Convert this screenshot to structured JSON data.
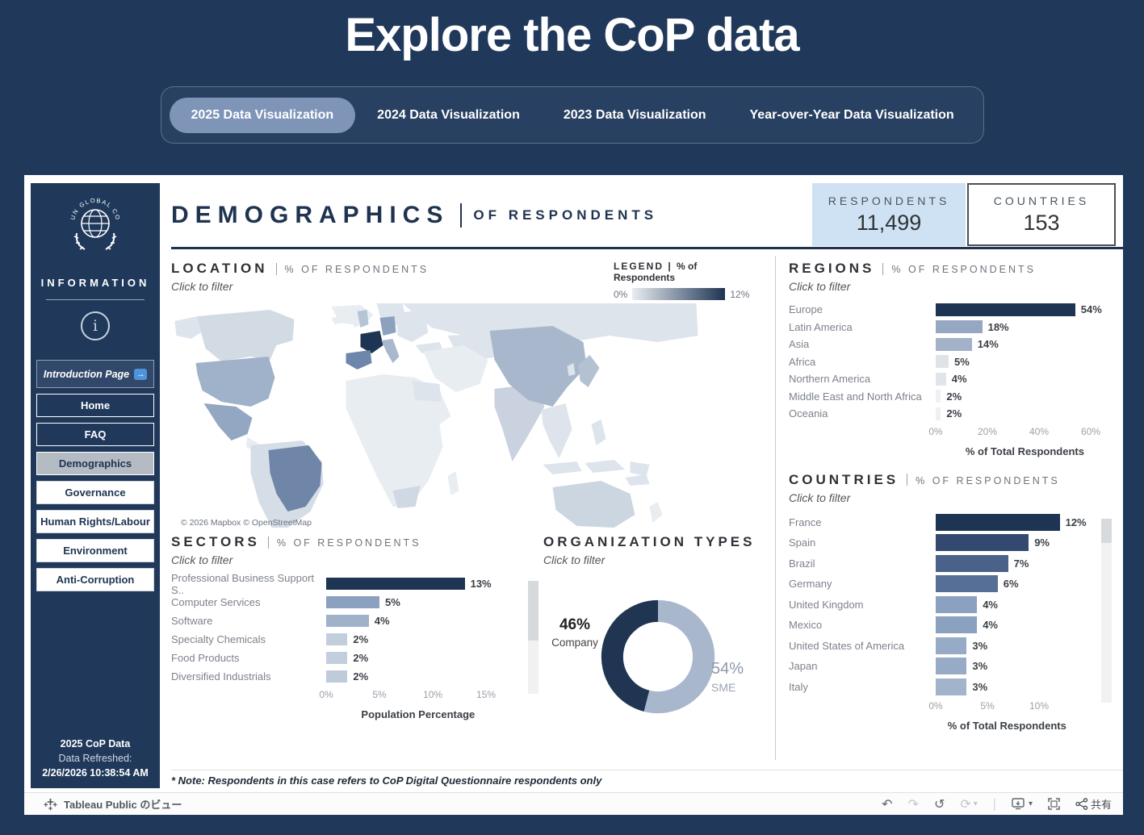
{
  "palette": {
    "navy": "#20395b",
    "pill": "#7e95b8",
    "darkest": "#1d3452",
    "counter_blue": "#cfe2f3"
  },
  "page": {
    "title": "Explore the CoP data"
  },
  "tabs": [
    {
      "label": "2025 Data Visualization",
      "active": true
    },
    {
      "label": "2024 Data Visualization",
      "active": false
    },
    {
      "label": "2023 Data Visualization",
      "active": false
    },
    {
      "label": "Year-over-Year Data Visualization",
      "active": false
    }
  ],
  "sidebar": {
    "logo_text": "UN GLOBAL COMPACT",
    "info_heading": "INFORMATION",
    "intro": {
      "label": "Introduction Page",
      "arrow": "→"
    },
    "nav": [
      {
        "label": "Home"
      },
      {
        "label": "FAQ"
      },
      {
        "label": "Demographics"
      },
      {
        "label": "Governance"
      },
      {
        "label": "Human Rights/Labour"
      },
      {
        "label": "Environment"
      },
      {
        "label": "Anti-Corruption"
      }
    ],
    "footer": {
      "line1": "2025 CoP Data",
      "line2": "Data Refreshed:",
      "line3": "2/26/2026 10:38:54 AM"
    }
  },
  "header": {
    "title": "DEMOGRAPHICS",
    "subtitle": "OF RESPONDENTS"
  },
  "counters": {
    "respondents": {
      "label": "RESPONDENTS",
      "value": "11,499"
    },
    "countries": {
      "label": "COUNTRIES",
      "value": "153"
    }
  },
  "sections": {
    "location": {
      "title": "LOCATION",
      "subtitle": "% OF RESPONDENTS",
      "hint": "Click to filter"
    },
    "regions": {
      "title": "REGIONS",
      "subtitle": "% OF RESPONDENTS",
      "hint": "Click to filter"
    },
    "countries": {
      "title": "COUNTRIES",
      "subtitle": "% OF RESPONDENTS",
      "hint": "Click to filter"
    },
    "sectors": {
      "title": "SECTORS",
      "subtitle": "% OF RESPONDENTS",
      "hint": "Click to filter"
    },
    "org_types": {
      "title": "ORGANIZATION TYPES",
      "hint": "Click to filter"
    }
  },
  "legend": {
    "title": "LEGEND",
    "subtitle": "% of Respondents",
    "min": "0%",
    "max": "12%"
  },
  "map": {
    "attribution": "© 2026 Mapbox  © OpenStreetMap"
  },
  "note": "* Note: Respondents in this case refers to CoP Digital Questionnaire respondents only",
  "toolbar": {
    "brand": "Tableau Public のビュー",
    "share": "共有"
  },
  "chart_data": [
    {
      "id": "regions",
      "type": "bar",
      "title": "REGIONS | % OF RESPONDENTS",
      "categories": [
        "Europe",
        "Latin America",
        "Asia",
        "Africa",
        "Northern America",
        "Middle East and North Africa",
        "Oceania"
      ],
      "values": [
        54,
        18,
        14,
        5,
        4,
        2,
        2
      ],
      "colors": [
        "#1d3452",
        "#96a7c2",
        "#a3b2c9",
        "#dfe3e8",
        "#e1e5ea",
        "#eef0f3",
        "#eef0f3"
      ],
      "xlabel": "% of Total Respondents",
      "xlim": [
        0,
        60
      ],
      "ticks": [
        0,
        20,
        40,
        60
      ]
    },
    {
      "id": "countries",
      "type": "bar",
      "title": "COUNTRIES | % OF RESPONDENTS",
      "categories": [
        "France",
        "Spain",
        "Brazil",
        "Germany",
        "United Kingdom",
        "Mexico",
        "United States of America",
        "Japan",
        "Italy"
      ],
      "values": [
        12,
        9,
        7,
        6,
        4,
        4,
        3,
        3,
        3
      ],
      "colors": [
        "#1d3452",
        "#33496f",
        "#4a6189",
        "#566f96",
        "#8ba1c0",
        "#8ba1c0",
        "#97abc7",
        "#97abc7",
        "#a2b3cc"
      ],
      "xlabel": "% of Total Respondents",
      "xlim": [
        0,
        12
      ],
      "ticks": [
        0,
        5,
        10
      ]
    },
    {
      "id": "sectors",
      "type": "bar",
      "title": "SECTORS | % OF RESPONDENTS",
      "categories": [
        "Professional Business Support S..",
        "Computer Services",
        "Software",
        "Specialty Chemicals",
        "Food Products",
        "Diversified Industrials"
      ],
      "values": [
        13,
        5,
        4,
        2,
        2,
        2
      ],
      "colors": [
        "#1d3452",
        "#8ca1bf",
        "#9fb2ca",
        "#c3cedd",
        "#c3cedd",
        "#bfcbda"
      ],
      "xlabel": "Population Percentage",
      "xlim": [
        0,
        15
      ],
      "ticks": [
        0,
        5,
        10,
        15
      ]
    },
    {
      "id": "org_types",
      "type": "pie",
      "title": "ORGANIZATION TYPES",
      "slices": [
        {
          "name": "SME",
          "pct": 54,
          "pct_label": "54%",
          "color": "#a9b7cd"
        },
        {
          "name": "Company",
          "pct": 46,
          "pct_label": "46%",
          "color": "#1f3551"
        }
      ]
    },
    {
      "id": "location_map",
      "type": "heatmap",
      "title": "LOCATION | % OF RESPONDENTS",
      "legend": {
        "min": 0,
        "max": 12,
        "unit": "% of Respondents"
      },
      "countries": [
        {
          "name": "France",
          "pct": 12
        },
        {
          "name": "Spain",
          "pct": 9
        },
        {
          "name": "Brazil",
          "pct": 7
        },
        {
          "name": "Germany",
          "pct": 6
        },
        {
          "name": "United Kingdom",
          "pct": 4
        },
        {
          "name": "Mexico",
          "pct": 4
        },
        {
          "name": "United States of America",
          "pct": 3
        },
        {
          "name": "Japan",
          "pct": 3
        },
        {
          "name": "Italy",
          "pct": 3
        },
        {
          "name": "China",
          "pct": 3
        }
      ]
    }
  ]
}
